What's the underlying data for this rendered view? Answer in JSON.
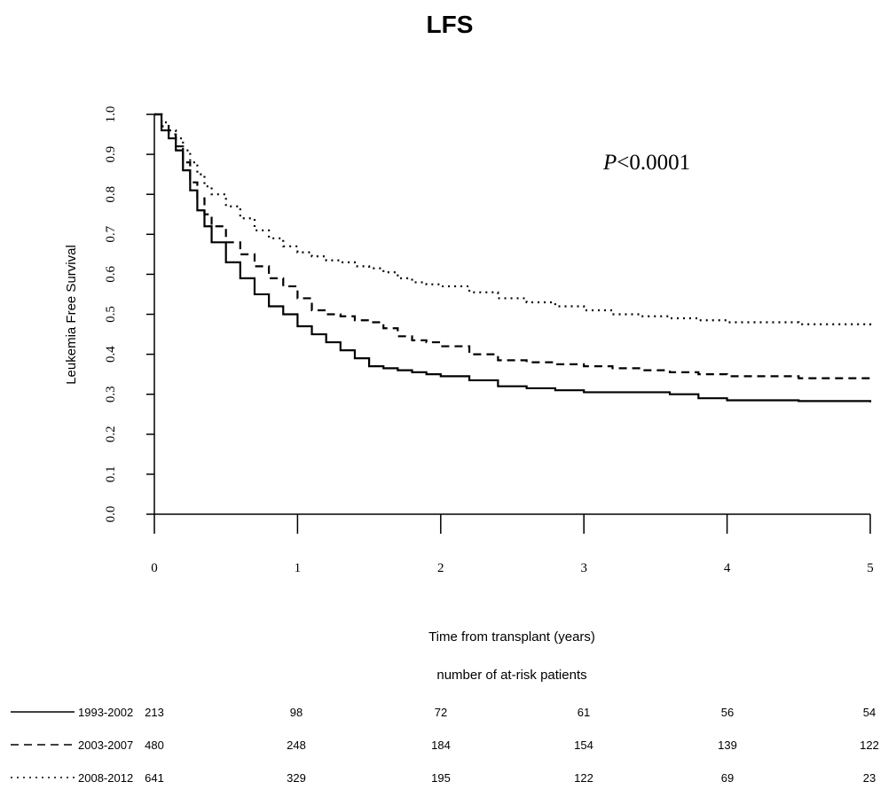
{
  "chart_data": {
    "type": "line",
    "title": "LFS",
    "xlabel": "Time from transplant (years)",
    "ylabel": "Leukemia Free Survival",
    "annotation": {
      "italic": "P",
      "rest": "<0.0001"
    },
    "xlim": [
      0,
      5
    ],
    "ylim": [
      0,
      1
    ],
    "x_ticks": [
      "0",
      "1",
      "2",
      "3",
      "4",
      "5"
    ],
    "y_ticks": [
      "0.0",
      "0.1",
      "0.2",
      "0.3",
      "0.4",
      "0.5",
      "0.6",
      "0.7",
      "0.8",
      "0.9",
      "1.0"
    ],
    "grid": false,
    "series": [
      {
        "name": "1993-2002",
        "line_style": "solid",
        "x": [
          0,
          0.05,
          0.1,
          0.15,
          0.2,
          0.25,
          0.3,
          0.35,
          0.4,
          0.5,
          0.6,
          0.7,
          0.8,
          0.9,
          1.0,
          1.1,
          1.2,
          1.3,
          1.4,
          1.5,
          1.6,
          1.7,
          1.8,
          1.9,
          2.0,
          2.2,
          2.4,
          2.6,
          2.8,
          3.0,
          3.2,
          3.4,
          3.6,
          3.8,
          4.0,
          4.5,
          5.0
        ],
        "y": [
          1.0,
          0.96,
          0.94,
          0.91,
          0.86,
          0.81,
          0.76,
          0.72,
          0.68,
          0.63,
          0.59,
          0.55,
          0.52,
          0.5,
          0.47,
          0.45,
          0.43,
          0.41,
          0.39,
          0.37,
          0.365,
          0.36,
          0.355,
          0.35,
          0.345,
          0.335,
          0.32,
          0.315,
          0.31,
          0.305,
          0.305,
          0.305,
          0.3,
          0.29,
          0.285,
          0.283,
          0.28
        ]
      },
      {
        "name": "2003-2007",
        "line_style": "dashed",
        "x": [
          0,
          0.05,
          0.1,
          0.15,
          0.2,
          0.25,
          0.3,
          0.35,
          0.4,
          0.5,
          0.6,
          0.7,
          0.8,
          0.9,
          1.0,
          1.1,
          1.2,
          1.3,
          1.4,
          1.5,
          1.6,
          1.7,
          1.8,
          1.9,
          2.0,
          2.2,
          2.4,
          2.6,
          2.8,
          3.0,
          3.2,
          3.4,
          3.6,
          3.8,
          4.0,
          4.5,
          5.0
        ],
        "y": [
          1.0,
          0.97,
          0.95,
          0.92,
          0.88,
          0.83,
          0.79,
          0.75,
          0.72,
          0.68,
          0.65,
          0.62,
          0.59,
          0.57,
          0.54,
          0.51,
          0.5,
          0.495,
          0.485,
          0.48,
          0.465,
          0.445,
          0.435,
          0.43,
          0.42,
          0.4,
          0.385,
          0.38,
          0.375,
          0.37,
          0.365,
          0.36,
          0.355,
          0.35,
          0.345,
          0.34,
          0.335
        ]
      },
      {
        "name": "2008-2012",
        "line_style": "dotted",
        "x": [
          0,
          0.05,
          0.1,
          0.15,
          0.2,
          0.25,
          0.3,
          0.35,
          0.4,
          0.5,
          0.6,
          0.7,
          0.8,
          0.9,
          1.0,
          1.1,
          1.2,
          1.3,
          1.4,
          1.5,
          1.6,
          1.7,
          1.8,
          1.9,
          2.0,
          2.2,
          2.4,
          2.6,
          2.8,
          3.0,
          3.2,
          3.4,
          3.6,
          3.8,
          4.0,
          4.5,
          5.0
        ],
        "y": [
          1.0,
          0.98,
          0.96,
          0.94,
          0.91,
          0.88,
          0.85,
          0.82,
          0.8,
          0.77,
          0.74,
          0.71,
          0.69,
          0.67,
          0.655,
          0.645,
          0.635,
          0.63,
          0.62,
          0.615,
          0.605,
          0.59,
          0.58,
          0.575,
          0.57,
          0.555,
          0.54,
          0.53,
          0.52,
          0.51,
          0.5,
          0.495,
          0.49,
          0.485,
          0.48,
          0.475,
          0.47
        ]
      }
    ],
    "at_risk": {
      "title": "number of at-risk patients",
      "rows": [
        {
          "label": "1993-2002",
          "line_style": "solid",
          "counts": [
            "213",
            "98",
            "72",
            "61",
            "56",
            "54"
          ]
        },
        {
          "label": "2003-2007",
          "line_style": "dashed",
          "counts": [
            "480",
            "248",
            "184",
            "154",
            "139",
            "122"
          ]
        },
        {
          "label": "2008-2012",
          "line_style": "dotted",
          "counts": [
            "641",
            "329",
            "195",
            "122",
            "69",
            "23"
          ]
        }
      ]
    }
  }
}
